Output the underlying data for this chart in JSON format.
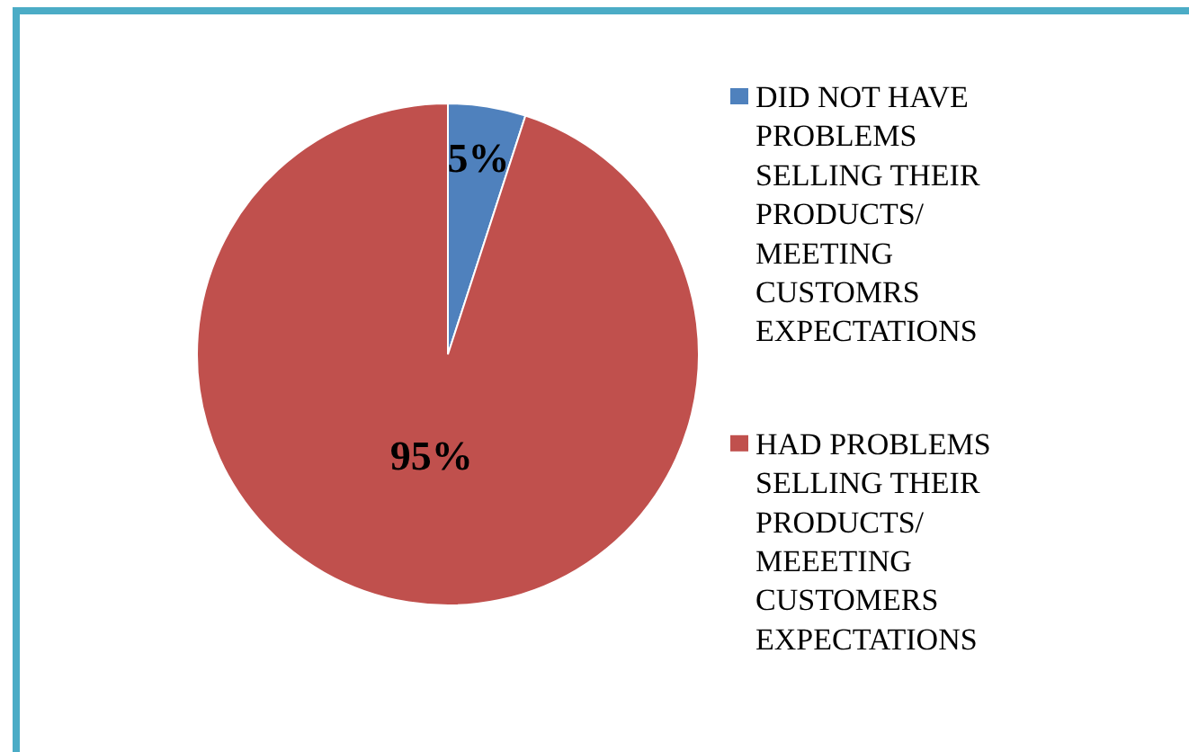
{
  "chart_data": {
    "type": "pie",
    "categories": [
      "DID NOT HAVE PROBLEMS SELLING THEIR PRODUCTS/ MEETING CUSTOMRS EXPECTATIONS",
      "HAD PROBLEMS SELLING THEIR PRODUCTS/ MEEETING CUSTOMERS EXPECTATIONS"
    ],
    "values": [
      5,
      95
    ],
    "colors": [
      "#4f81bd",
      "#c0504d"
    ],
    "value_labels": [
      "5%",
      "95%"
    ],
    "legend": "right"
  }
}
